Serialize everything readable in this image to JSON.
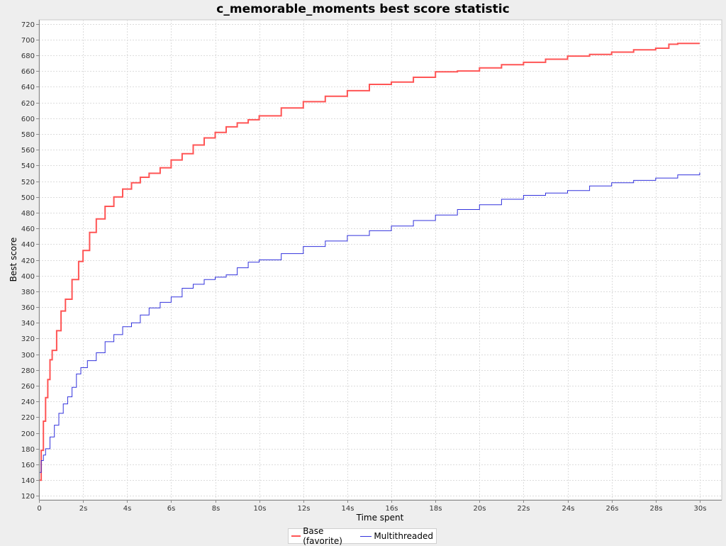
{
  "chart_data": {
    "type": "line",
    "title": "c_memorable_moments best score statistic",
    "xlabel": "Time spent",
    "ylabel": "Best score",
    "xlim": [
      0,
      31
    ],
    "ylim": [
      115,
      725
    ],
    "x_ticks": [
      {
        "value": 0,
        "label": "0"
      },
      {
        "value": 2,
        "label": "2s"
      },
      {
        "value": 4,
        "label": "4s"
      },
      {
        "value": 6,
        "label": "6s"
      },
      {
        "value": 8,
        "label": "8s"
      },
      {
        "value": 10,
        "label": "10s"
      },
      {
        "value": 12,
        "label": "12s"
      },
      {
        "value": 14,
        "label": "14s"
      },
      {
        "value": 16,
        "label": "16s"
      },
      {
        "value": 18,
        "label": "18s"
      },
      {
        "value": 20,
        "label": "20s"
      },
      {
        "value": 22,
        "label": "22s"
      },
      {
        "value": 24,
        "label": "24s"
      },
      {
        "value": 26,
        "label": "26s"
      },
      {
        "value": 28,
        "label": "28s"
      },
      {
        "value": 30,
        "label": "30s"
      }
    ],
    "y_ticks": [
      120,
      140,
      160,
      180,
      200,
      220,
      240,
      260,
      280,
      300,
      320,
      340,
      360,
      380,
      400,
      420,
      440,
      460,
      480,
      500,
      520,
      540,
      560,
      580,
      600,
      620,
      640,
      660,
      680,
      700,
      720
    ],
    "grid": true,
    "legend_position": "bottom-center",
    "series": [
      {
        "name": "Base (favorite)",
        "color": "#ff5555",
        "x": [
          0,
          0.1,
          0.2,
          0.3,
          0.4,
          0.5,
          0.6,
          0.8,
          1.0,
          1.2,
          1.5,
          1.8,
          2.0,
          2.3,
          2.6,
          3.0,
          3.4,
          3.8,
          4.2,
          4.6,
          5.0,
          5.5,
          6.0,
          6.5,
          7.0,
          7.5,
          8.0,
          8.5,
          9.0,
          9.5,
          10.0,
          11.0,
          12.0,
          13.0,
          14.0,
          15.0,
          16.0,
          17.0,
          18.0,
          19.0,
          20.0,
          21.0,
          22.0,
          23.0,
          24.0,
          25.0,
          26.0,
          27.0,
          28.0,
          28.6,
          29.0,
          30.0
        ],
        "values": [
          140,
          178,
          215,
          245,
          268,
          293,
          305,
          330,
          355,
          370,
          395,
          418,
          432,
          455,
          472,
          488,
          500,
          510,
          518,
          525,
          530,
          537,
          547,
          555,
          566,
          575,
          582,
          589,
          594,
          598,
          603,
          613,
          621,
          628,
          635,
          643,
          646,
          652,
          659,
          660,
          664,
          668,
          671,
          675,
          679,
          681,
          684,
          687,
          689,
          694,
          695,
          695
        ]
      },
      {
        "name": "Multithreaded",
        "color": "#3333dd",
        "x": [
          0,
          0.1,
          0.2,
          0.3,
          0.5,
          0.7,
          0.9,
          1.1,
          1.3,
          1.5,
          1.7,
          1.9,
          2.2,
          2.6,
          3.0,
          3.4,
          3.8,
          4.2,
          4.6,
          5.0,
          5.5,
          6.0,
          6.5,
          7.0,
          7.5,
          8.0,
          8.5,
          9.0,
          9.5,
          10.0,
          11.0,
          12.0,
          13.0,
          14.0,
          15.0,
          16.0,
          17.0,
          18.0,
          19.0,
          20.0,
          21.0,
          22.0,
          23.0,
          24.0,
          25.0,
          26.0,
          27.0,
          28.0,
          29.0,
          30.0
        ],
        "values": [
          150,
          165,
          172,
          180,
          195,
          210,
          225,
          237,
          246,
          258,
          275,
          283,
          292,
          302,
          316,
          325,
          335,
          340,
          350,
          359,
          366,
          373,
          384,
          389,
          395,
          398,
          401,
          410,
          417,
          420,
          428,
          437,
          444,
          451,
          457,
          463,
          470,
          477,
          484,
          490,
          497,
          502,
          505,
          508,
          514,
          518,
          521,
          524,
          528,
          531
        ]
      }
    ]
  }
}
